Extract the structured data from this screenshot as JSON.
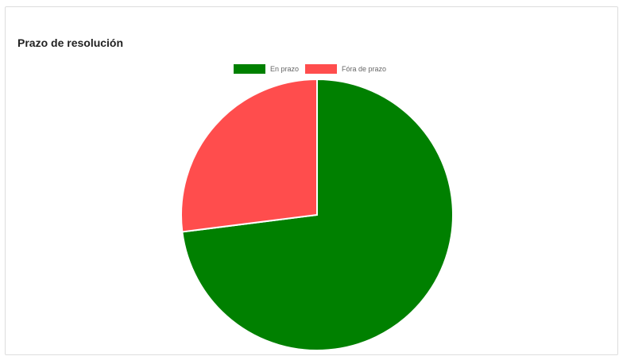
{
  "panel": {
    "title": "Prazo de resolución"
  },
  "chart_data": {
    "type": "pie",
    "title": "Prazo de resolución",
    "legend_position": "top",
    "categories": [
      "En prazo",
      "Fóra de prazo"
    ],
    "values": [
      73,
      27
    ],
    "colors": [
      "#008000",
      "#ff4d4d"
    ]
  }
}
